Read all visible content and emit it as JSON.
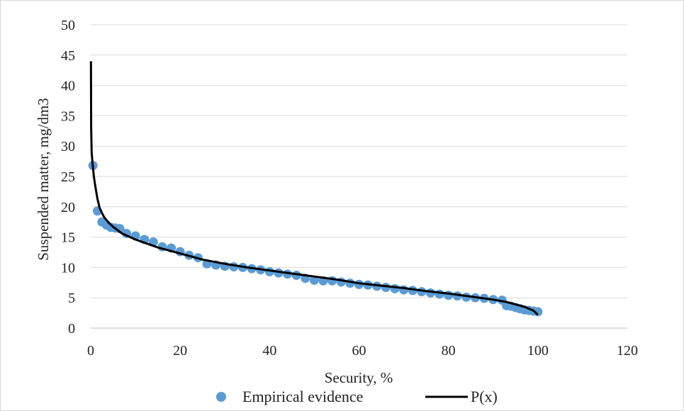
{
  "chart_data": {
    "type": "scatter",
    "xlabel": "Security, %",
    "ylabel": "Suspended matter, mg/dm3",
    "xlim": [
      0,
      120
    ],
    "ylim": [
      0,
      50
    ],
    "x_ticks": [
      0,
      20,
      40,
      60,
      80,
      100,
      120
    ],
    "y_ticks": [
      0,
      5,
      10,
      15,
      20,
      25,
      30,
      35,
      40,
      45,
      50
    ],
    "grid": "horizontal",
    "legend_position": "bottom",
    "colors": {
      "empirical": "#5b9bd5",
      "fit": "#000000",
      "grid": "#d9d9d9"
    },
    "series": [
      {
        "name": "Empirical evidence",
        "type": "scatter",
        "x": [
          0.5,
          1.5,
          2.5,
          3.5,
          4.5,
          5.5,
          6.5,
          8,
          10,
          12,
          14,
          16,
          18,
          20,
          22,
          24,
          26,
          28,
          30,
          32,
          34,
          36,
          38,
          40,
          42,
          44,
          46,
          48,
          50,
          52,
          54,
          56,
          58,
          60,
          62,
          64,
          66,
          68,
          70,
          72,
          74,
          76,
          78,
          80,
          82,
          84,
          86,
          88,
          90,
          92,
          93,
          94,
          95,
          96,
          97,
          98,
          99,
          100
        ],
        "y": [
          26.8,
          19.3,
          17.5,
          17.0,
          16.6,
          16.5,
          16.4,
          15.6,
          15.2,
          14.6,
          14.2,
          13.4,
          13.2,
          12.6,
          12.0,
          11.6,
          10.6,
          10.4,
          10.2,
          10.1,
          10.0,
          9.8,
          9.6,
          9.3,
          9.1,
          8.9,
          8.7,
          8.2,
          7.9,
          7.8,
          7.8,
          7.6,
          7.4,
          7.2,
          7.1,
          6.9,
          6.7,
          6.5,
          6.3,
          6.2,
          6.0,
          5.8,
          5.6,
          5.4,
          5.3,
          5.1,
          5.0,
          4.9,
          4.7,
          4.6,
          3.7,
          3.6,
          3.4,
          3.2,
          3.0,
          2.9,
          2.8,
          2.7
        ]
      },
      {
        "name": "P(x)",
        "type": "line",
        "x": [
          0.05,
          0.1,
          0.2,
          0.4,
          0.7,
          1,
          1.5,
          2,
          2.5,
          3,
          4,
          5,
          7,
          10,
          15,
          20,
          25,
          30,
          35,
          40,
          45,
          50,
          55,
          60,
          65,
          70,
          75,
          80,
          85,
          90,
          93,
          95,
          97,
          98,
          99,
          100
        ],
        "y": [
          44,
          33,
          29,
          27.2,
          25.0,
          23.5,
          21.3,
          19.8,
          19.0,
          18.3,
          17.4,
          16.7,
          15.6,
          14.6,
          13.3,
          12.3,
          11.3,
          10.6,
          10.0,
          9.5,
          9.0,
          8.5,
          8.0,
          7.4,
          7.0,
          6.6,
          6.1,
          5.7,
          5.2,
          4.7,
          4.3,
          3.9,
          3.5,
          3.2,
          2.9,
          2.2
        ]
      }
    ]
  }
}
